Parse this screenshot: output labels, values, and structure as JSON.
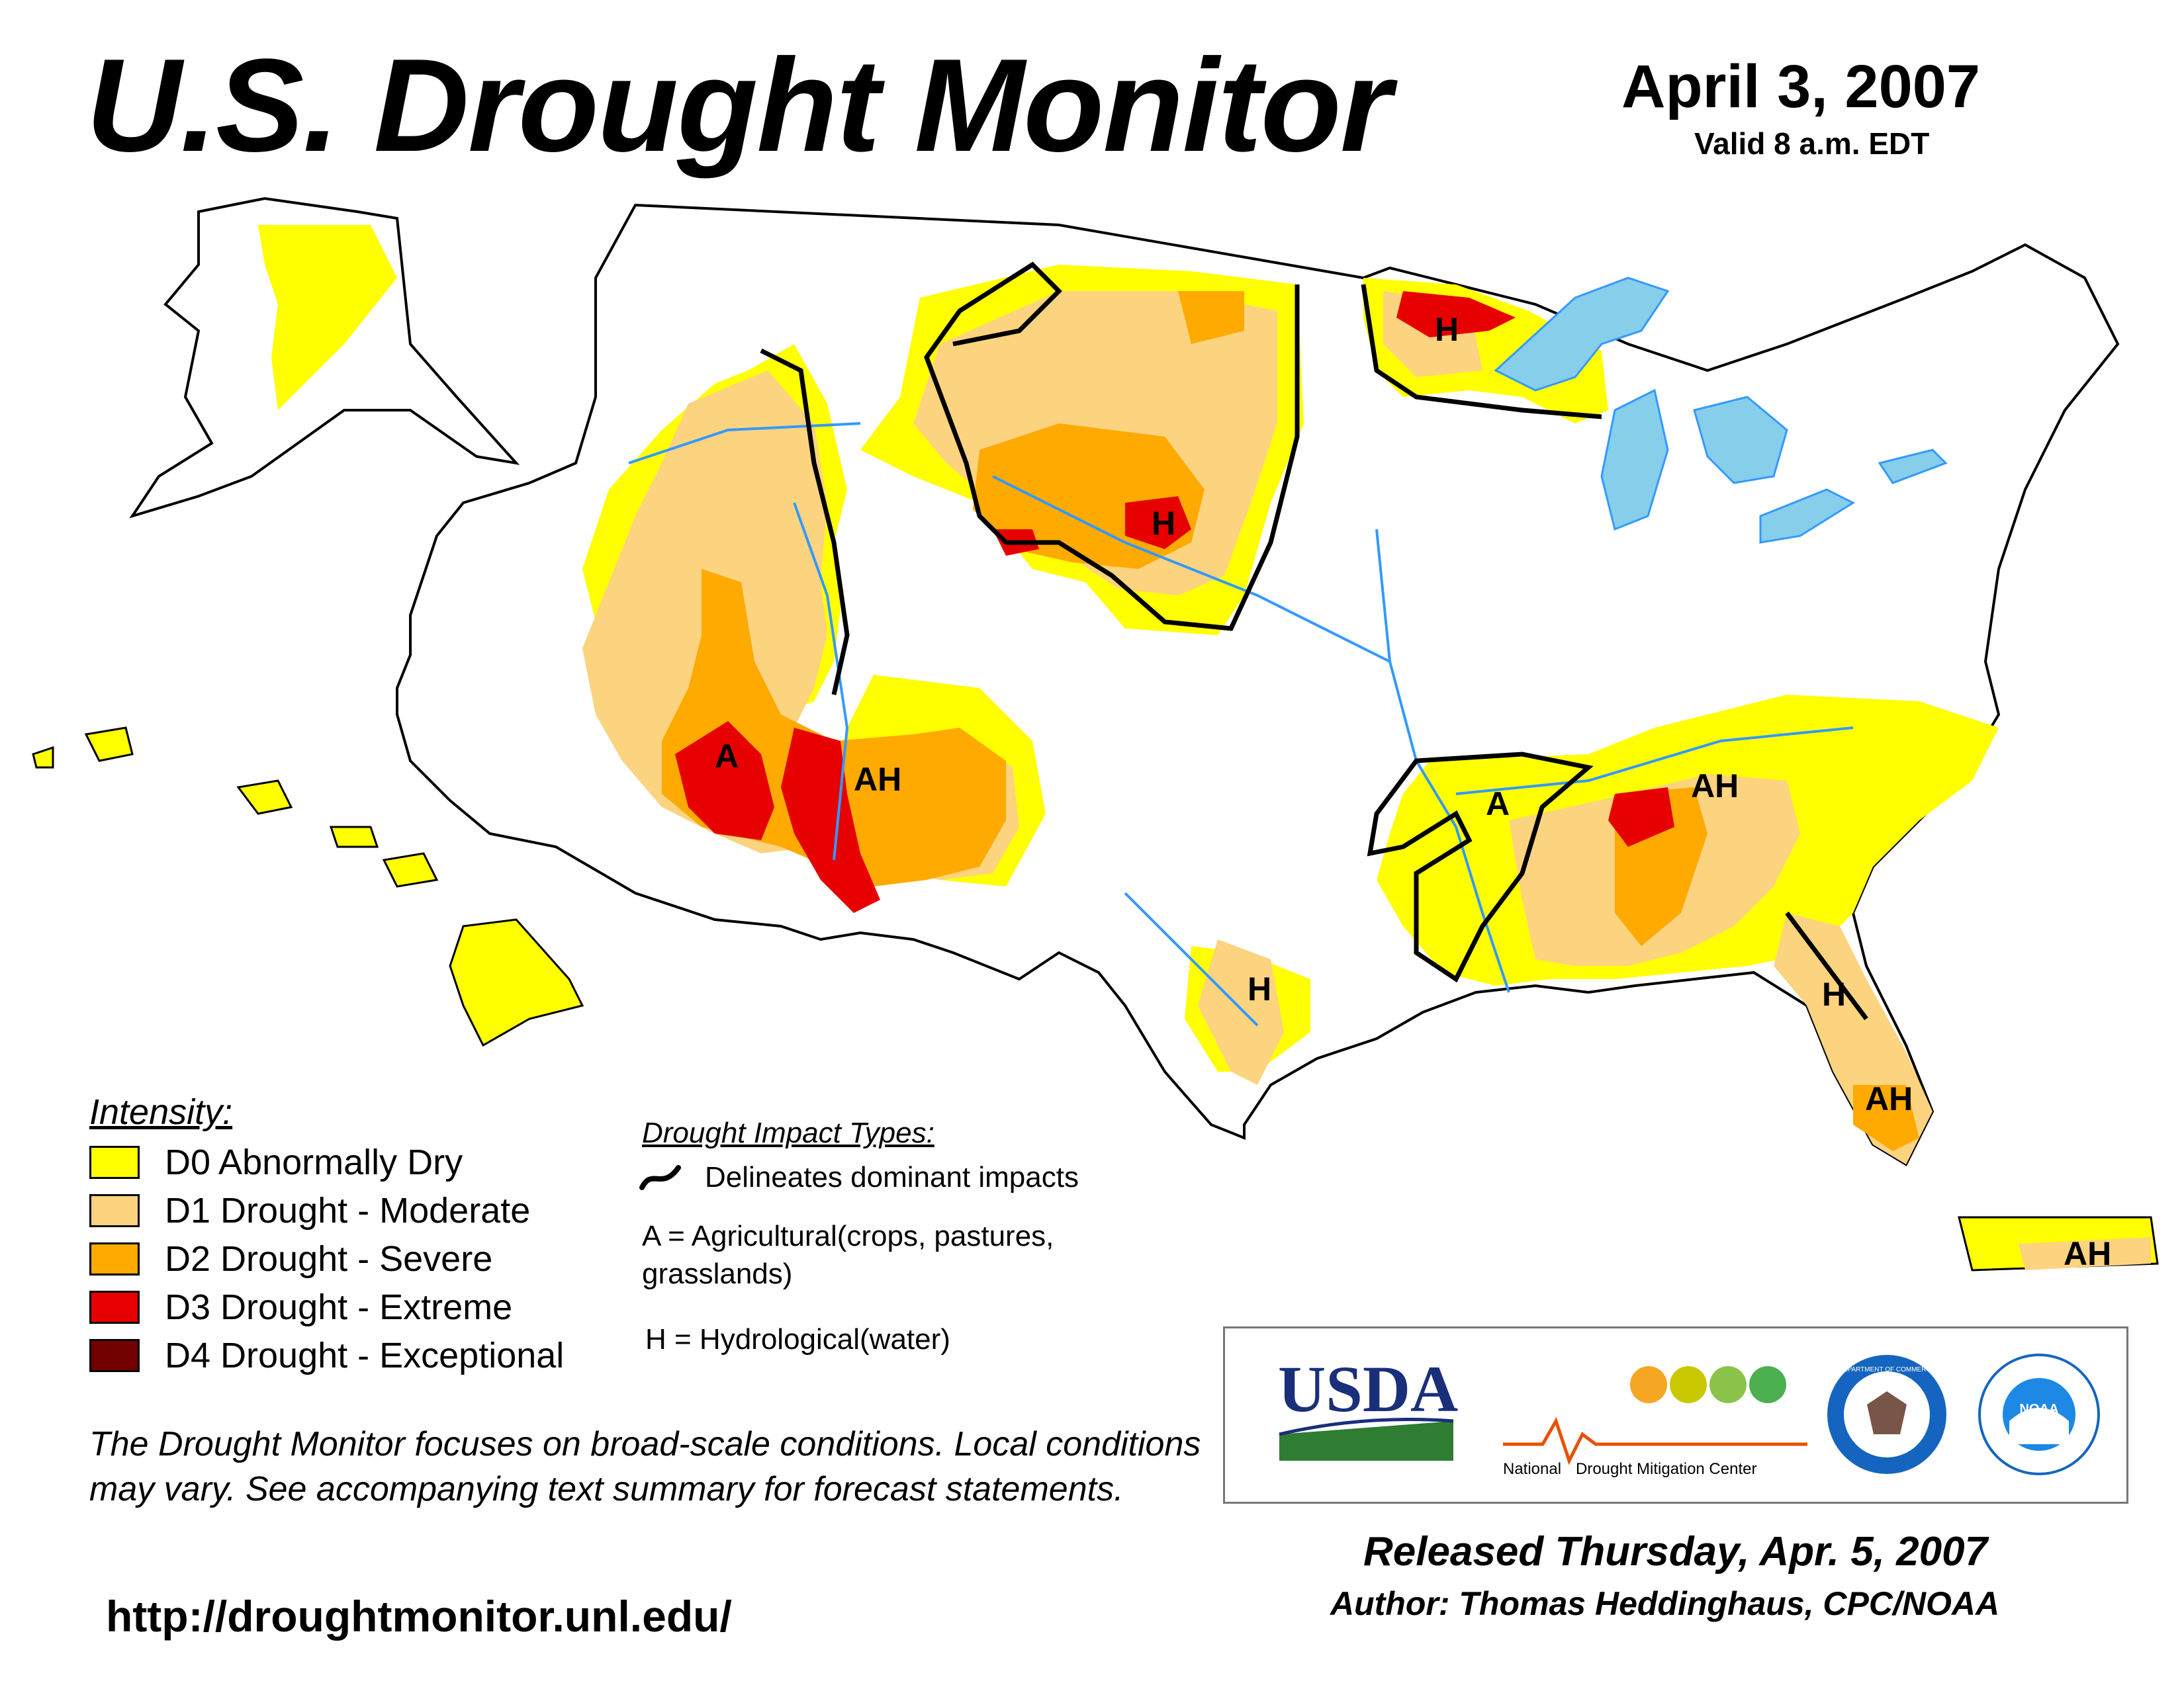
{
  "header": {
    "title": "U.S. Drought Monitor",
    "date": "April 3, 2007",
    "valid": "Valid 8 a.m. EDT"
  },
  "colors": {
    "D0": "#ffff00",
    "D1": "#fcd37f",
    "D2": "#ffaa00",
    "D3": "#e60000",
    "D4": "#730000",
    "water": "#3399ff",
    "lakes": "#87ceeb",
    "state_border": "#000000",
    "county_border": "#999999"
  },
  "legend": {
    "title": "Intensity:",
    "items": [
      {
        "code": "D0",
        "label": "D0 Abnormally Dry"
      },
      {
        "code": "D1",
        "label": "D1 Drought - Moderate"
      },
      {
        "code": "D2",
        "label": "D2 Drought - Severe"
      },
      {
        "code": "D3",
        "label": "D3 Drought - Extreme"
      },
      {
        "code": "D4",
        "label": "D4 Drought - Exceptional"
      }
    ]
  },
  "impacts": {
    "title": "Drought Impact Types:",
    "line_label": "Delineates dominant impacts",
    "a_label": "A = Agricultural(crops, pastures, grasslands)",
    "h_label": "H = Hydrological(water)"
  },
  "map_labels": {
    "minnesota": "H",
    "wyoming": "H",
    "socal": "A",
    "arizona": "AH",
    "arkansas": "A",
    "tennessee": "AH",
    "texas": "H",
    "north_florida": "H",
    "south_florida": "AH",
    "puerto_rico": "AH"
  },
  "logos": {
    "usda": "USDA",
    "ndmc_line1": "National",
    "ndmc_line2": "Drought Mitigation Center",
    "doc": "DEPARTMENT OF COMMERCE",
    "noaa": "NOAA"
  },
  "disclaimer": "The Drought Monitor focuses on broad-scale conditions. Local conditions may vary. See accompanying text summary for forecast statements.",
  "url": "http://droughtmonitor.unl.edu/",
  "released": "Released Thursday, Apr. 5, 2007",
  "author": "Author: Thomas Heddinghaus, CPC/NOAA"
}
